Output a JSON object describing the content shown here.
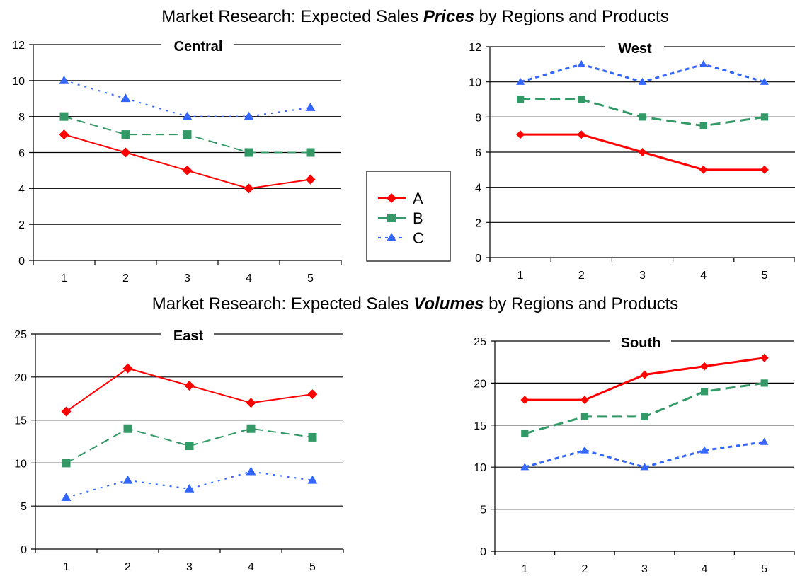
{
  "titles": {
    "prices": {
      "prefix": "Market Research: Expected Sales ",
      "emphasis": "Prices",
      "suffix": " by Regions and Products"
    },
    "volumes": {
      "prefix": "Market Research: Expected Sales ",
      "emphasis": "Volumes",
      "suffix": " by Regions and Products"
    }
  },
  "legend": {
    "entries": [
      {
        "label": "A",
        "color": "#FF0000",
        "marker": "diamond",
        "line": "solid"
      },
      {
        "label": "B",
        "color": "#339966",
        "marker": "square",
        "line": "dashed"
      },
      {
        "label": "C",
        "color": "#3366FF",
        "marker": "triangle",
        "line": "dotted"
      }
    ]
  },
  "chart_data": [
    {
      "type": "line",
      "title": "Central",
      "group": "Prices",
      "categories": [
        "1",
        "2",
        "3",
        "4",
        "5"
      ],
      "ylim": [
        0,
        12
      ],
      "yticks": [
        0,
        2,
        4,
        6,
        8,
        10,
        12
      ],
      "grid": true,
      "series": [
        {
          "name": "A",
          "values": [
            7,
            6,
            5,
            4,
            4.5
          ]
        },
        {
          "name": "B",
          "values": [
            8,
            7,
            7,
            6,
            6
          ]
        },
        {
          "name": "C",
          "values": [
            10,
            9,
            8,
            8,
            8.5
          ]
        }
      ]
    },
    {
      "type": "line",
      "title": "West",
      "group": "Prices",
      "categories": [
        "1",
        "2",
        "3",
        "4",
        "5"
      ],
      "ylim": [
        0,
        12
      ],
      "yticks": [
        0,
        2,
        4,
        6,
        8,
        10,
        12
      ],
      "grid": true,
      "series": [
        {
          "name": "A",
          "values": [
            7,
            7,
            6,
            5,
            5
          ]
        },
        {
          "name": "B",
          "values": [
            9,
            9,
            8,
            7.5,
            8
          ]
        },
        {
          "name": "C",
          "values": [
            10,
            11,
            10,
            11,
            10
          ]
        }
      ]
    },
    {
      "type": "line",
      "title": "East",
      "group": "Volumes",
      "categories": [
        "1",
        "2",
        "3",
        "4",
        "5"
      ],
      "ylim": [
        0,
        25
      ],
      "yticks": [
        0,
        5,
        10,
        15,
        20,
        25
      ],
      "grid": true,
      "series": [
        {
          "name": "A",
          "values": [
            16,
            21,
            19,
            17,
            18
          ]
        },
        {
          "name": "B",
          "values": [
            10,
            14,
            12,
            14,
            13
          ]
        },
        {
          "name": "C",
          "values": [
            6,
            8,
            7,
            9,
            8
          ]
        }
      ]
    },
    {
      "type": "line",
      "title": "South",
      "group": "Volumes",
      "categories": [
        "1",
        "2",
        "3",
        "4",
        "5"
      ],
      "ylim": [
        0,
        25
      ],
      "yticks": [
        0,
        5,
        10,
        15,
        20,
        25
      ],
      "grid": true,
      "series": [
        {
          "name": "A",
          "values": [
            18,
            18,
            21,
            22,
            23
          ]
        },
        {
          "name": "B",
          "values": [
            14,
            16,
            16,
            19,
            20
          ]
        },
        {
          "name": "C",
          "values": [
            10,
            12,
            10,
            12,
            13
          ]
        }
      ]
    }
  ]
}
